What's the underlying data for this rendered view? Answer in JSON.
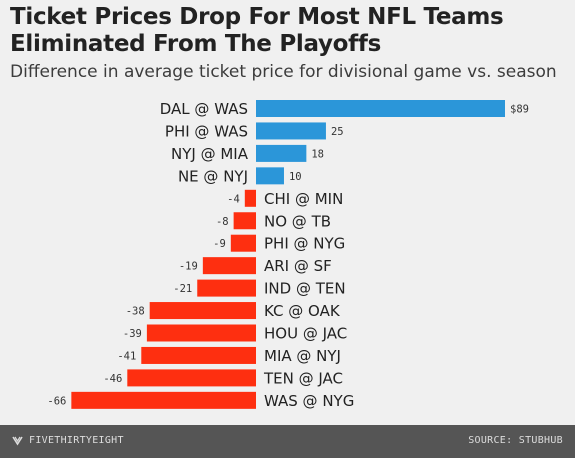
{
  "title": "Ticket Prices Drop For Most NFL Teams Eliminated From The Playoffs",
  "subtitle": "Difference in average ticket price for divisional game vs. season",
  "footer": {
    "brand": "FIVETHIRTYEIGHT",
    "brand_icon": "fivethirtyeight-logo-icon",
    "source": "SOURCE: STUBHUB"
  },
  "colors": {
    "positive": "#2b96d9",
    "negative": "#fe2f10",
    "background": "#f0f0f0",
    "footer": "#555555"
  },
  "chart_data": {
    "type": "bar",
    "orientation": "horizontal",
    "title": "Ticket Prices Drop For Most NFL Teams Eliminated From The Playoffs",
    "subtitle": "Difference in average ticket price for divisional game vs. season",
    "categories": [
      "DAL @ WAS",
      "PHI @ WAS",
      "NYJ @ MIA",
      "NE @ NYJ",
      "CHI @ MIN",
      "NO @ TB",
      "PHI @ NYG",
      "ARI @ SF",
      "IND @ TEN",
      "KC @ OAK",
      "HOU @ JAC",
      "MIA @ NYJ",
      "TEN @ JAC",
      "WAS @ NYG"
    ],
    "values": [
      89,
      25,
      18,
      10,
      -4,
      -8,
      -9,
      -19,
      -21,
      -38,
      -39,
      -41,
      -46,
      -66
    ],
    "value_labels": [
      "$89",
      "25",
      "18",
      "10",
      "-4",
      "-8",
      "-9",
      "-19",
      "-21",
      "-38",
      "-39",
      "-41",
      "-46",
      "-66"
    ],
    "xlim": [
      -66,
      89
    ],
    "grid": false
  }
}
